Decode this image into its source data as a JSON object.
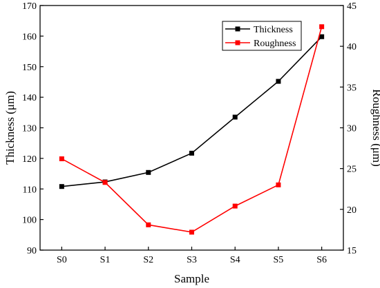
{
  "chart_data": {
    "type": "line",
    "categories": [
      "S0",
      "S1",
      "S2",
      "S3",
      "S4",
      "S5",
      "S6"
    ],
    "xlabel": "Sample",
    "ylabel": "Thickness (μm)",
    "ylabel_right": "Roughness (μm)",
    "ylim": [
      90,
      170
    ],
    "yticks": [
      90,
      100,
      110,
      120,
      130,
      140,
      150,
      160,
      170
    ],
    "ylim_right": [
      15,
      45
    ],
    "yticks_right": [
      15,
      20,
      25,
      30,
      35,
      40,
      45
    ],
    "grid": false,
    "legend_position": "top-right",
    "series": [
      {
        "name": "Thickness",
        "axis": "left",
        "color": "#000000",
        "values": [
          110.8,
          112.3,
          115.4,
          121.7,
          133.5,
          145.2,
          159.8
        ]
      },
      {
        "name": "Roughness",
        "axis": "right",
        "color": "#ff0000",
        "values": [
          26.2,
          23.3,
          18.1,
          17.2,
          20.4,
          23.0,
          42.4
        ]
      }
    ]
  }
}
